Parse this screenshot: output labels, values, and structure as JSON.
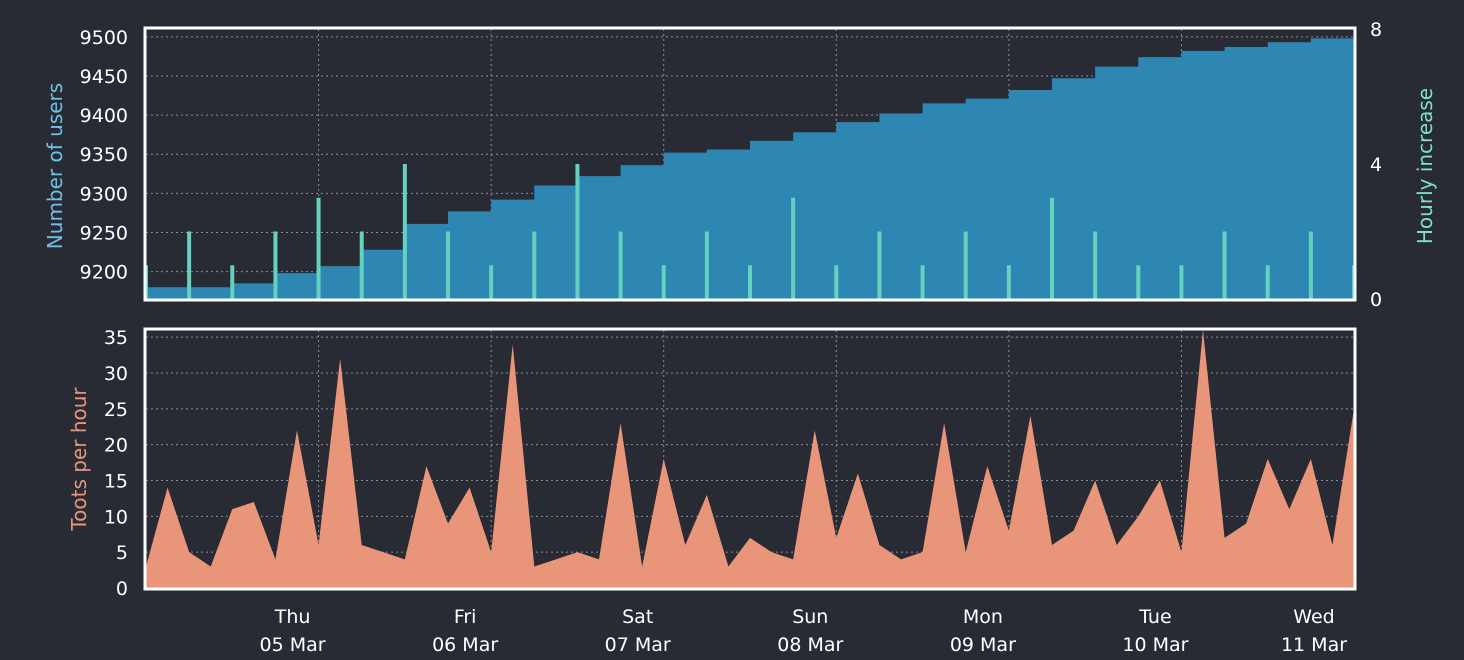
{
  "colors": {
    "background": "#282b34",
    "frame": "#ffffff",
    "grid": "#8a8d96",
    "users_fill": "#2e86b3",
    "users_label": "#6ec1e4",
    "hourly_bars": "#64d2bf",
    "hourly_label": "#7ee0cd",
    "toots_fill": "#e8957a",
    "toots_label": "#e8957a",
    "tick_text": "#ffffff"
  },
  "chart_data": [
    {
      "type": "area",
      "ylabel": "Number of users",
      "ylabel_right": "Hourly increase",
      "ylim": [
        9165,
        9510
      ],
      "ylim_right": [
        0,
        8
      ],
      "yticks": [
        9200,
        9250,
        9300,
        9350,
        9400,
        9450,
        9500
      ],
      "yticks_right": [
        0,
        4,
        8
      ],
      "grid": true,
      "x_start": "2020-03-04 00:00",
      "x_end": "2020-03-11 00:00",
      "series": [
        {
          "type": "area",
          "axis": "left",
          "x": [
            "2020-03-04 00:00",
            "2020-03-04 06:00",
            "2020-03-04 12:00",
            "2020-03-04 18:00",
            "2020-03-05 00:00",
            "2020-03-05 06:00",
            "2020-03-05 12:00",
            "2020-03-05 18:00",
            "2020-03-06 00:00",
            "2020-03-06 06:00",
            "2020-03-06 12:00",
            "2020-03-06 18:00",
            "2020-03-07 00:00",
            "2020-03-07 06:00",
            "2020-03-07 12:00",
            "2020-03-07 18:00",
            "2020-03-08 00:00",
            "2020-03-08 06:00",
            "2020-03-08 12:00",
            "2020-03-08 18:00",
            "2020-03-09 00:00",
            "2020-03-09 06:00",
            "2020-03-09 12:00",
            "2020-03-09 18:00",
            "2020-03-10 00:00",
            "2020-03-10 06:00",
            "2020-03-10 12:00",
            "2020-03-10 18:00",
            "2020-03-11 00:00"
          ],
          "values": [
            9180,
            9180,
            9185,
            9198,
            9207,
            9228,
            9261,
            9277,
            9292,
            9310,
            9322,
            9336,
            9352,
            9356,
            9367,
            9378,
            9391,
            9402,
            9415,
            9421,
            9432,
            9447,
            9462,
            9474,
            9482,
            9487,
            9493,
            9498,
            9510
          ]
        },
        {
          "type": "bar",
          "axis": "right",
          "x": [
            "2020-03-04 00:00",
            "2020-03-04 06:00",
            "2020-03-04 12:00",
            "2020-03-04 18:00",
            "2020-03-05 00:00",
            "2020-03-05 06:00",
            "2020-03-05 12:00",
            "2020-03-05 18:00",
            "2020-03-06 00:00",
            "2020-03-06 06:00",
            "2020-03-06 12:00",
            "2020-03-06 18:00",
            "2020-03-07 00:00",
            "2020-03-07 06:00",
            "2020-03-07 12:00",
            "2020-03-07 18:00",
            "2020-03-08 00:00",
            "2020-03-08 06:00",
            "2020-03-08 12:00",
            "2020-03-08 18:00",
            "2020-03-09 00:00",
            "2020-03-09 06:00",
            "2020-03-09 12:00",
            "2020-03-09 18:00",
            "2020-03-10 00:00",
            "2020-03-10 06:00",
            "2020-03-10 12:00",
            "2020-03-10 18:00",
            "2020-03-11 00:00"
          ],
          "values": [
            1,
            2,
            1,
            2,
            3,
            2,
            4,
            2,
            1,
            2,
            4,
            2,
            1,
            2,
            1,
            3,
            1,
            2,
            1,
            2,
            1,
            3,
            2,
            1,
            1,
            2,
            1,
            2,
            1
          ]
        }
      ]
    },
    {
      "type": "area",
      "ylabel": "Toots per hour",
      "ylim": [
        0,
        36
      ],
      "yticks": [
        0,
        5,
        10,
        15,
        20,
        25,
        30,
        35
      ],
      "grid": true,
      "x_start": "2020-03-04 00:00",
      "x_end": "2020-03-11 00:00",
      "xticks": [
        {
          "x": "2020-03-05 00:00",
          "day": "Thu",
          "date": "05 Mar"
        },
        {
          "x": "2020-03-06 00:00",
          "day": "Fri",
          "date": "06 Mar"
        },
        {
          "x": "2020-03-07 00:00",
          "day": "Sat",
          "date": "07 Mar"
        },
        {
          "x": "2020-03-08 00:00",
          "day": "Sun",
          "date": "08 Mar"
        },
        {
          "x": "2020-03-09 00:00",
          "day": "Mon",
          "date": "09 Mar"
        },
        {
          "x": "2020-03-10 00:00",
          "day": "Tue",
          "date": "10 Mar"
        },
        {
          "x": "2020-03-11 00:00",
          "day": "Wed",
          "date": "11 Mar"
        }
      ],
      "series": [
        {
          "x": [
            "2020-03-04 00:00",
            "2020-03-04 03:00",
            "2020-03-04 06:00",
            "2020-03-04 09:00",
            "2020-03-04 12:00",
            "2020-03-04 15:00",
            "2020-03-04 18:00",
            "2020-03-04 21:00",
            "2020-03-05 00:00",
            "2020-03-05 03:00",
            "2020-03-05 06:00",
            "2020-03-05 09:00",
            "2020-03-05 12:00",
            "2020-03-05 15:00",
            "2020-03-05 18:00",
            "2020-03-05 21:00",
            "2020-03-06 00:00",
            "2020-03-06 03:00",
            "2020-03-06 06:00",
            "2020-03-06 09:00",
            "2020-03-06 12:00",
            "2020-03-06 15:00",
            "2020-03-06 18:00",
            "2020-03-06 21:00",
            "2020-03-07 00:00",
            "2020-03-07 03:00",
            "2020-03-07 06:00",
            "2020-03-07 09:00",
            "2020-03-07 12:00",
            "2020-03-07 15:00",
            "2020-03-07 18:00",
            "2020-03-07 21:00",
            "2020-03-08 00:00",
            "2020-03-08 03:00",
            "2020-03-08 06:00",
            "2020-03-08 09:00",
            "2020-03-08 12:00",
            "2020-03-08 15:00",
            "2020-03-08 18:00",
            "2020-03-08 21:00",
            "2020-03-09 00:00",
            "2020-03-09 03:00",
            "2020-03-09 06:00",
            "2020-03-09 09:00",
            "2020-03-09 12:00",
            "2020-03-09 15:00",
            "2020-03-09 18:00",
            "2020-03-09 21:00",
            "2020-03-10 00:00",
            "2020-03-10 03:00",
            "2020-03-10 06:00",
            "2020-03-10 09:00",
            "2020-03-10 12:00",
            "2020-03-10 15:00",
            "2020-03-10 18:00",
            "2020-03-10 21:00",
            "2020-03-11 00:00"
          ],
          "values": [
            3,
            14,
            5,
            3,
            11,
            12,
            4,
            22,
            6,
            32,
            6,
            5,
            4,
            17,
            9,
            14,
            5,
            34,
            3,
            4,
            5,
            4,
            23,
            3,
            18,
            6,
            13,
            3,
            7,
            5,
            4,
            22,
            7,
            16,
            6,
            4,
            5,
            23,
            5,
            17,
            8,
            24,
            6,
            8,
            15,
            6,
            10,
            15,
            5,
            36,
            7,
            9,
            18,
            11,
            18,
            6,
            25
          ]
        }
      ]
    }
  ]
}
